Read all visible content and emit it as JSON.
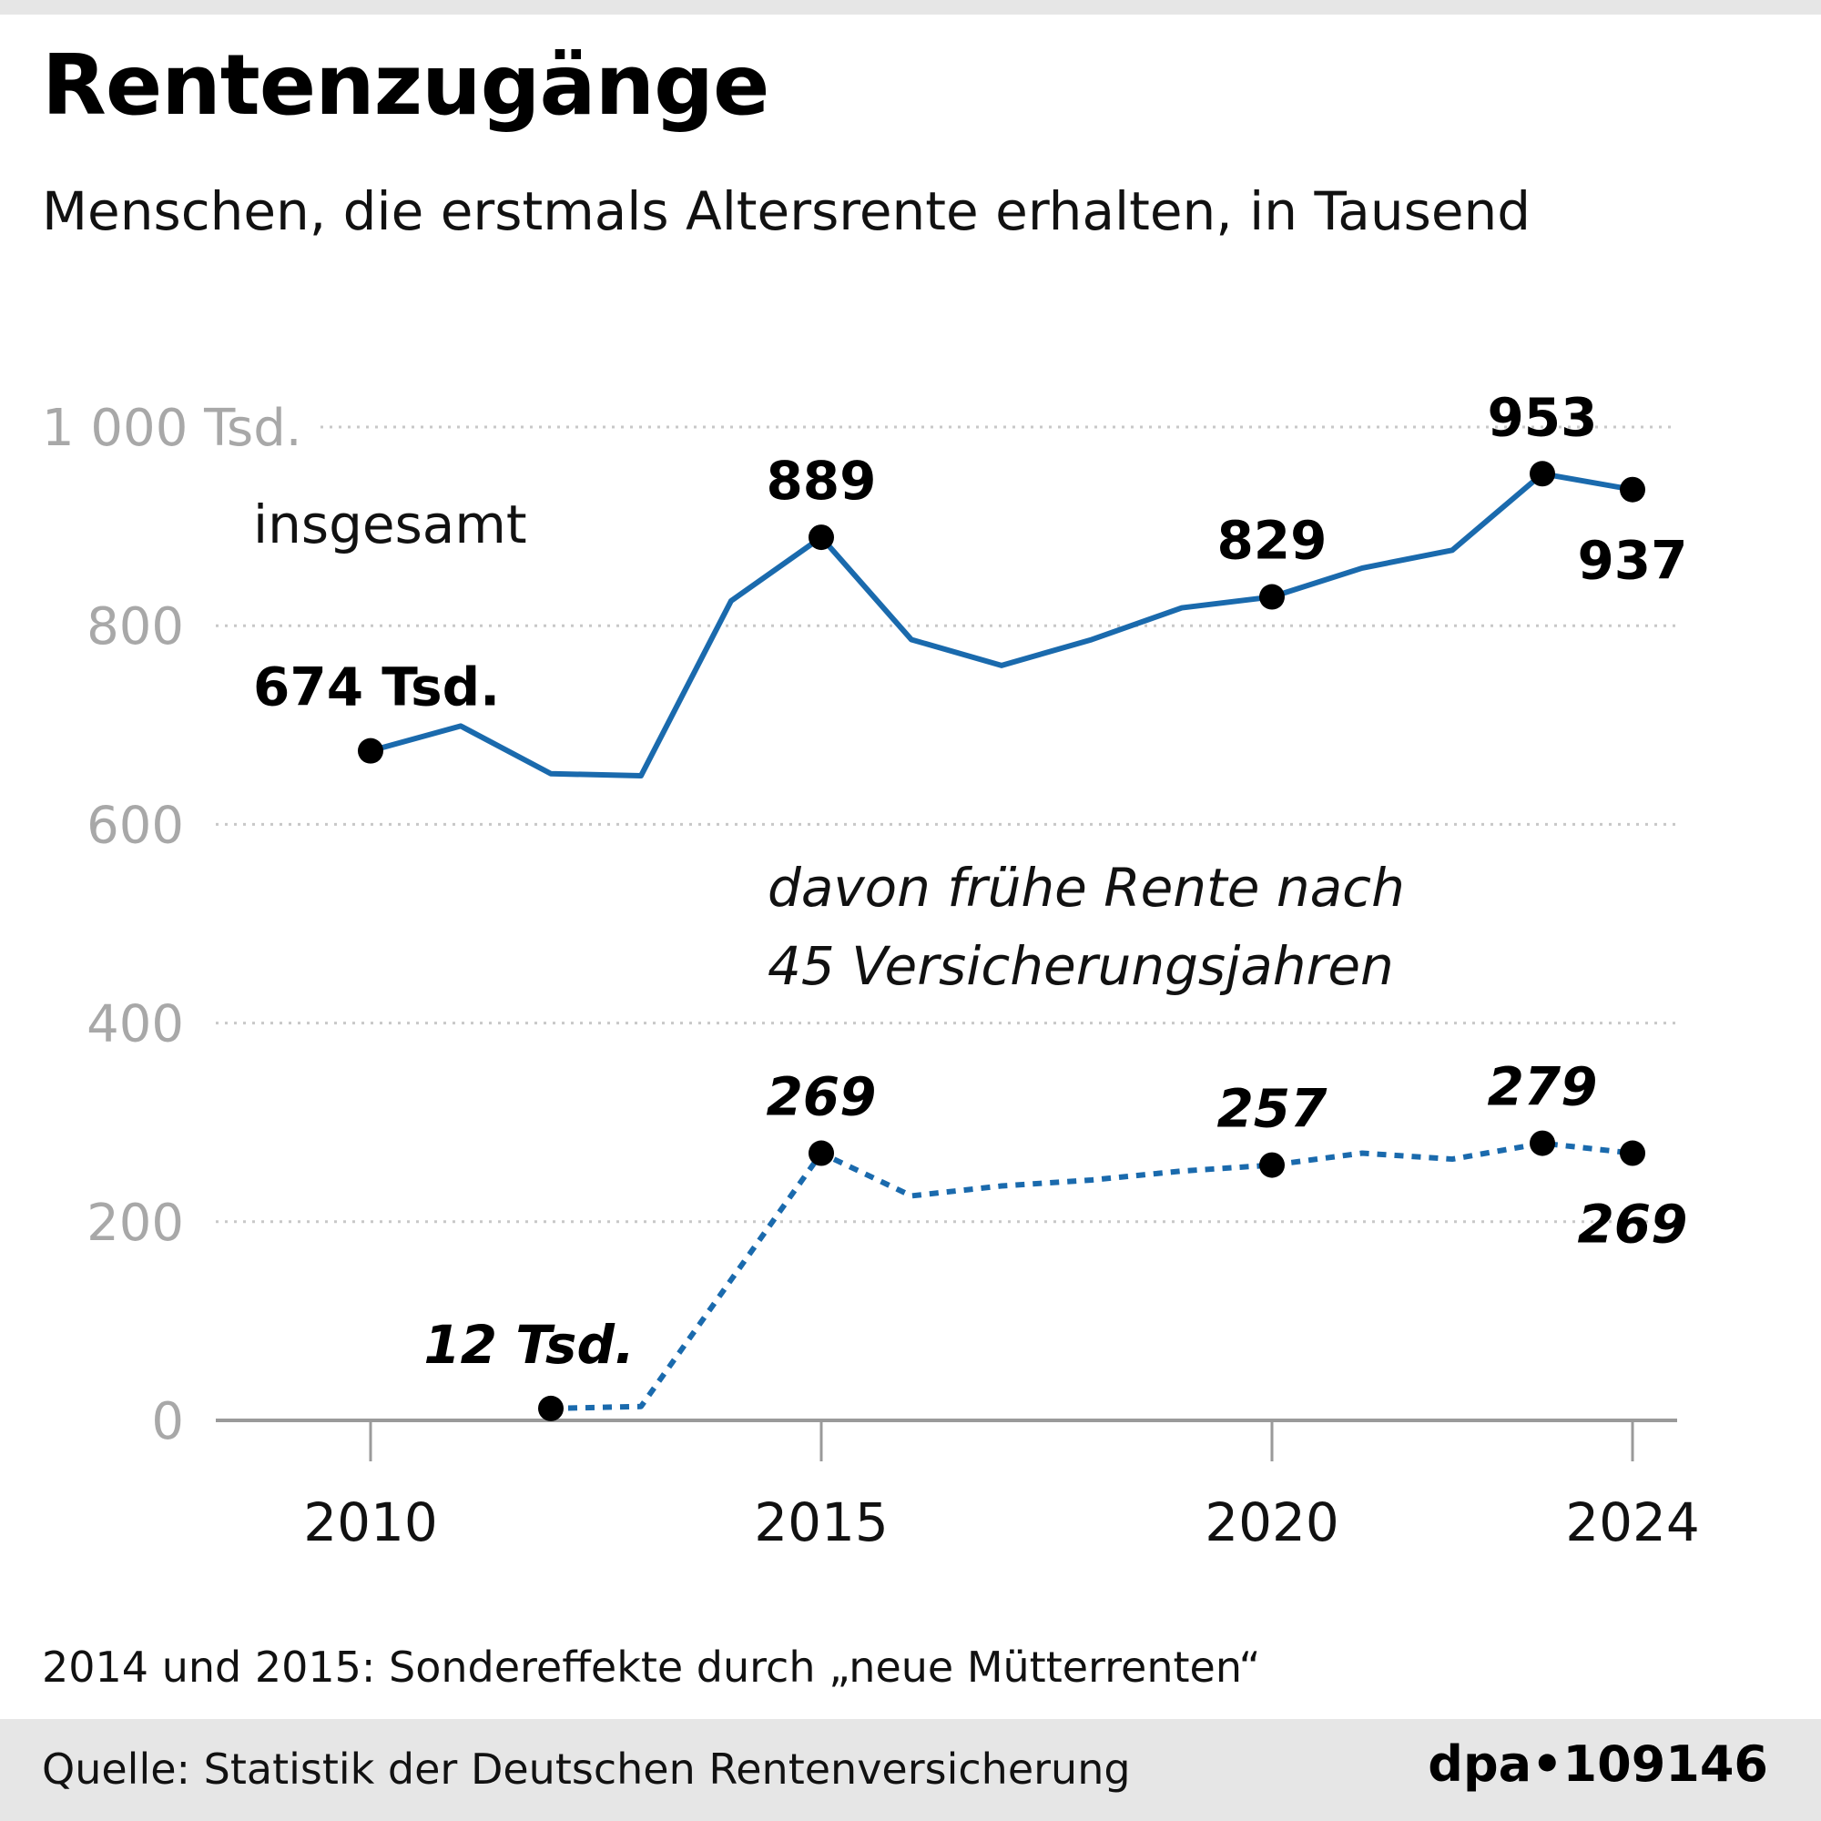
{
  "title": "Rentenzugänge",
  "subtitle": "Menschen, die erstmals Altersrente erhalten, in Tausend",
  "note": "2014 und 2015: Sondereffekte durch „neue Mütterrenten“",
  "source": "Quelle: Statistik der Deutschen Rentenversicherung",
  "brand": "dpa•109146",
  "chart_data": {
    "type": "line",
    "ylim": [
      0,
      1000
    ],
    "yticks": [
      0,
      200,
      400,
      600,
      800,
      1000
    ],
    "ytick_labels": [
      "0",
      "200",
      "400",
      "600",
      "800",
      "1 000 Tsd."
    ],
    "xticks": [
      2010,
      2015,
      2020,
      2024
    ],
    "xtick_labels": [
      "2010",
      "2015",
      "2020",
      "2024"
    ],
    "grid": true,
    "line_color": "#1a6aad",
    "series": [
      {
        "name": "insgesamt",
        "style": "solid",
        "x": [
          2010,
          2011,
          2012,
          2013,
          2014,
          2015,
          2016,
          2017,
          2018,
          2019,
          2020,
          2021,
          2022,
          2023,
          2024
        ],
        "values": [
          674,
          699,
          651,
          649,
          825,
          889,
          786,
          760,
          786,
          818,
          829,
          858,
          876,
          953,
          937
        ],
        "labels": [
          {
            "x": 2010,
            "text": "674 Tsd."
          },
          {
            "x": 2015,
            "text": "889"
          },
          {
            "x": 2020,
            "text": "829"
          },
          {
            "x": 2023,
            "text": "953"
          },
          {
            "x": 2024,
            "text": "937"
          }
        ]
      },
      {
        "name": "davon frühe Rente nach 45 Versicherungsjahren",
        "name_lines": [
          "davon frühe Rente nach",
          "45 Versicherungsjahren"
        ],
        "style": "dotted",
        "x": [
          2012,
          2013,
          2015,
          2016,
          2017,
          2018,
          2019,
          2020,
          2021,
          2022,
          2023,
          2024
        ],
        "values": [
          12,
          14,
          269,
          226,
          236,
          242,
          251,
          257,
          269,
          263,
          279,
          269
        ],
        "labels": [
          {
            "x": 2012,
            "text": "12 Tsd."
          },
          {
            "x": 2015,
            "text": "269"
          },
          {
            "x": 2020,
            "text": "257"
          },
          {
            "x": 2023,
            "text": "279"
          },
          {
            "x": 2024,
            "text": "269"
          }
        ]
      }
    ]
  }
}
